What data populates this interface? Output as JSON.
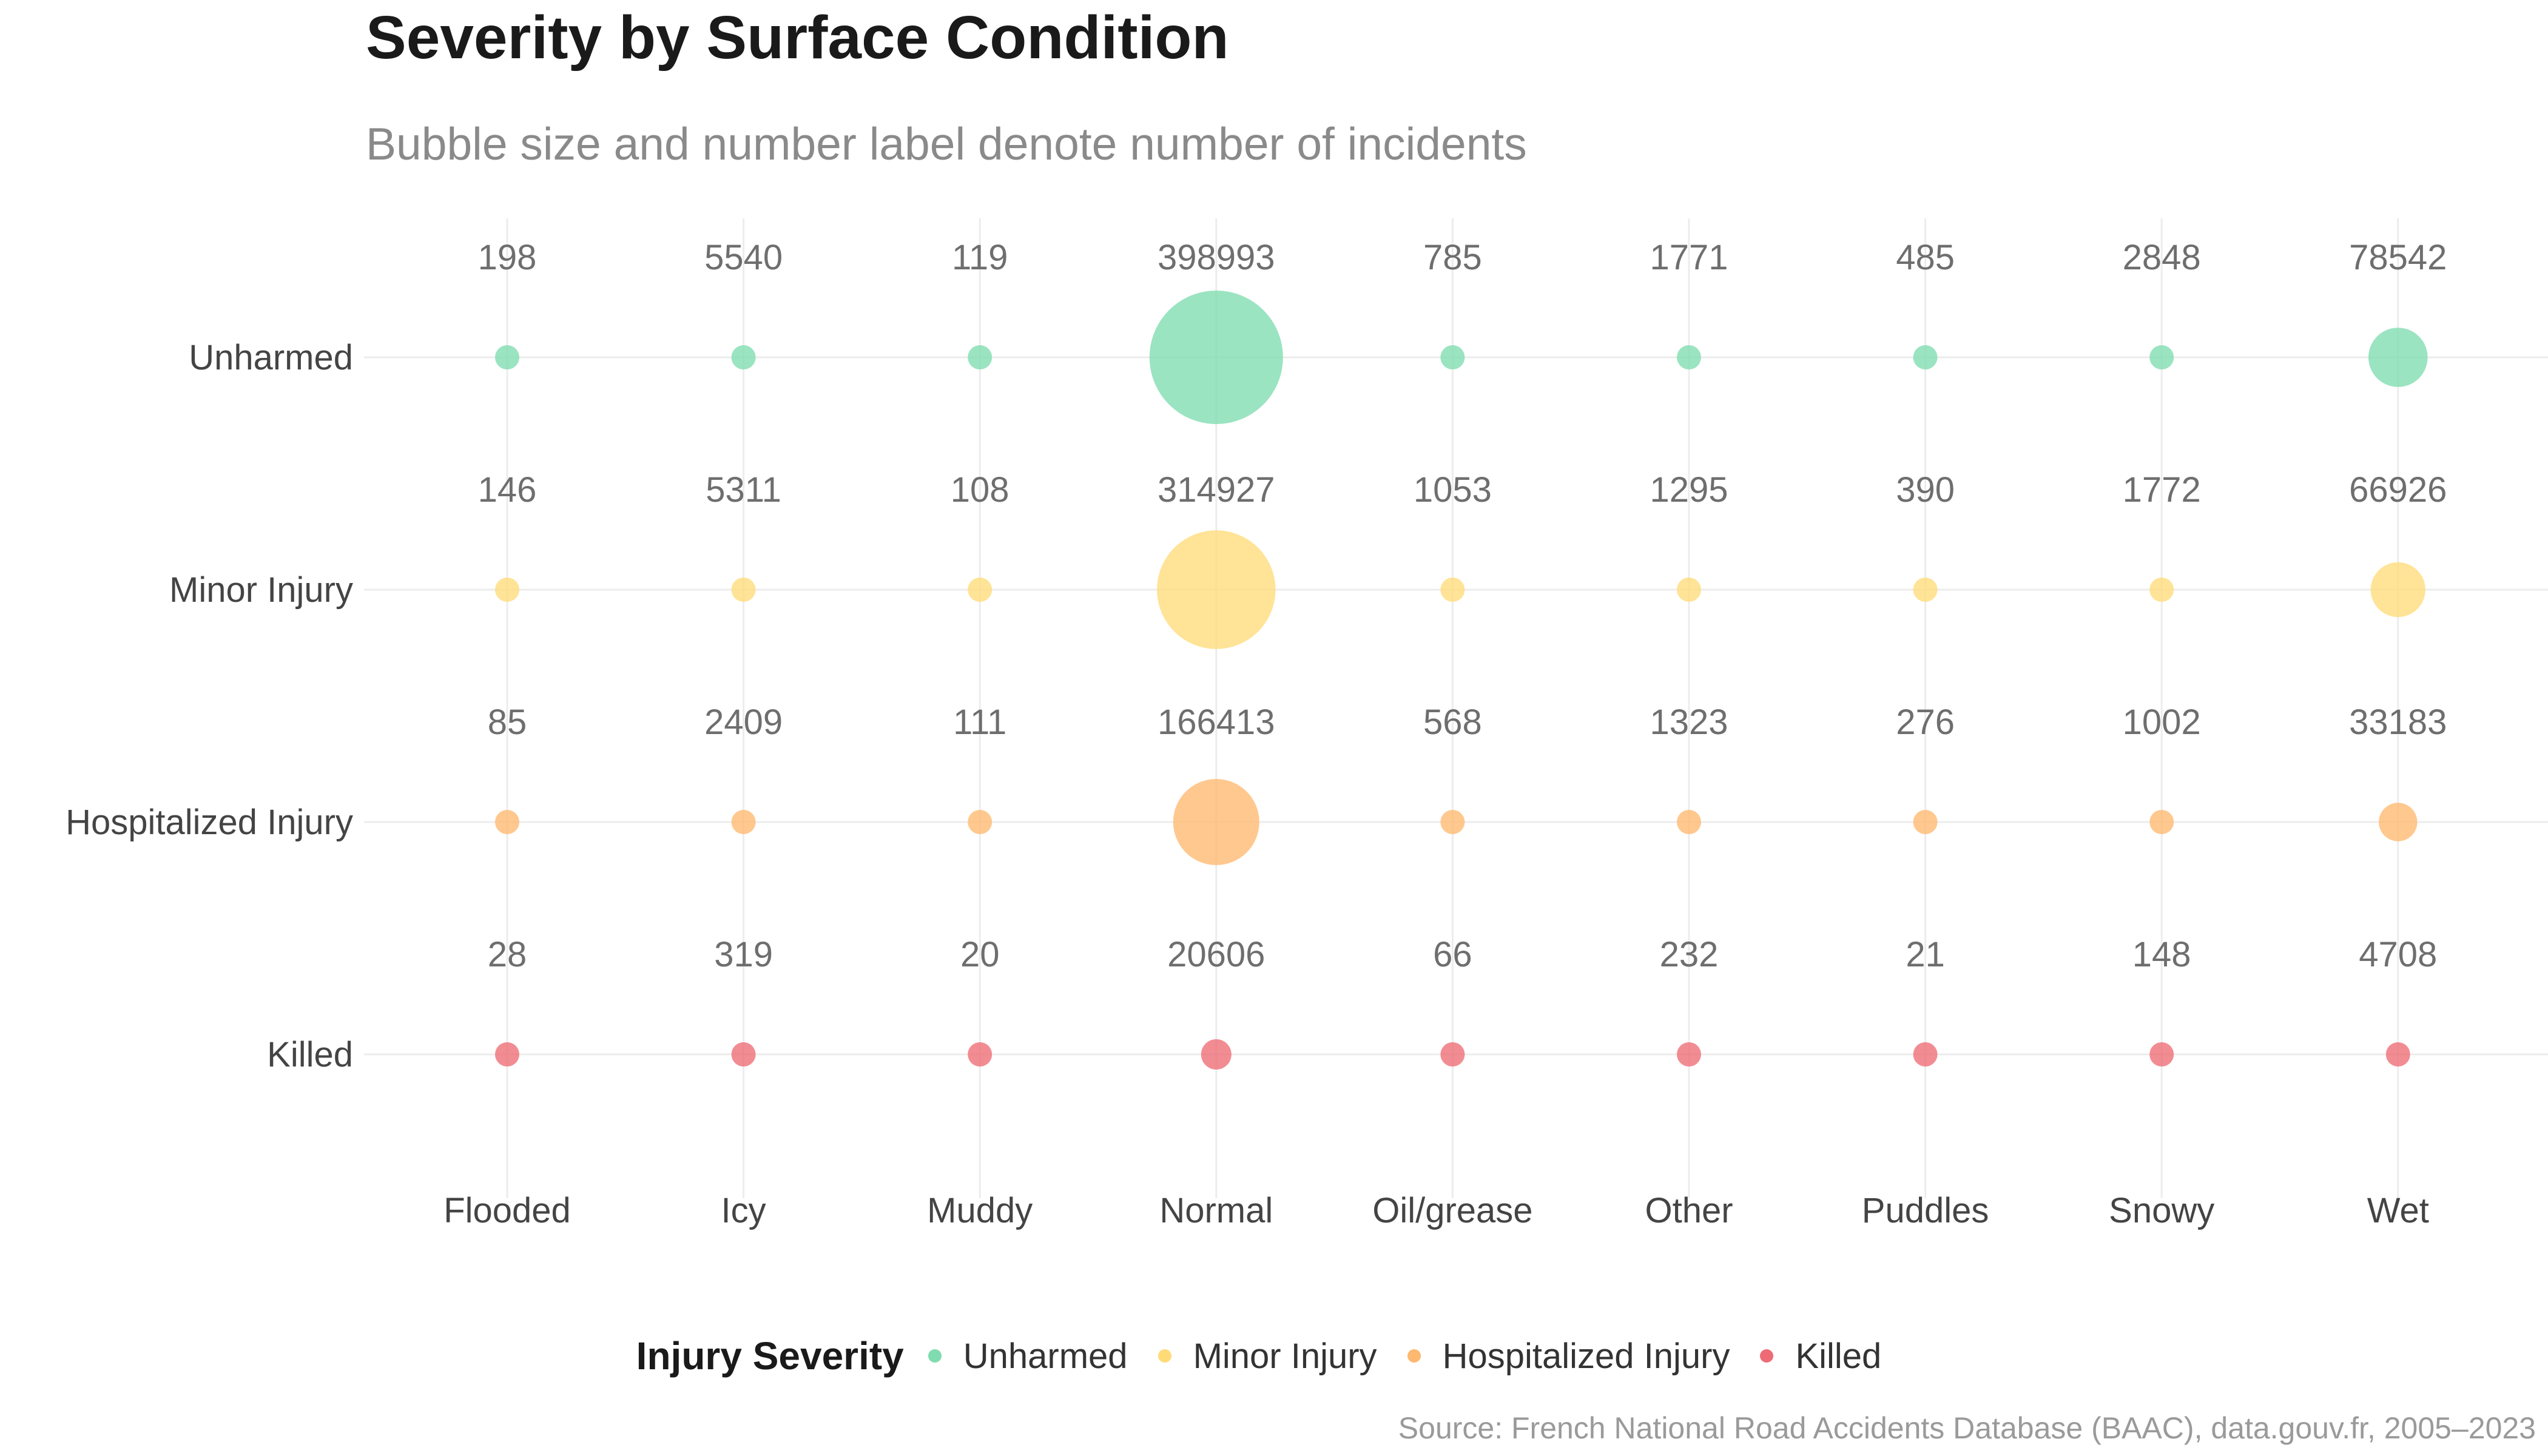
{
  "chart_data": {
    "type": "scatter",
    "title": "Severity by Surface Condition",
    "subtitle": "Bubble size and number label denote number of incidents",
    "caption": "Source: French National Road Accidents Database (BAAC), data.gouv.fr, 2005–2023",
    "x_categories": [
      "Flooded",
      "Icy",
      "Muddy",
      "Normal",
      "Oil/grease",
      "Other",
      "Puddles",
      "Snowy",
      "Wet"
    ],
    "y_categories": [
      "Unharmed",
      "Minor Injury",
      "Hospitalized Injury",
      "Killed"
    ],
    "legend": {
      "title": "Injury Severity",
      "position": "bottom",
      "items": [
        {
          "label": "Unharmed",
          "color": "#7fdcb0"
        },
        {
          "label": "Minor Injury",
          "color": "#ffdb78"
        },
        {
          "label": "Hospitalized Injury",
          "color": "#ffb870"
        },
        {
          "label": "Killed",
          "color": "#ee6b75"
        }
      ]
    },
    "series": [
      {
        "name": "Unharmed",
        "color": "#7fdcb0",
        "values": [
          198,
          5540,
          119,
          398993,
          785,
          1771,
          485,
          2848,
          78542
        ]
      },
      {
        "name": "Minor Injury",
        "color": "#ffdb78",
        "values": [
          146,
          5311,
          108,
          314927,
          1053,
          1295,
          390,
          1772,
          66926
        ]
      },
      {
        "name": "Hospitalized Injury",
        "color": "#ffb870",
        "values": [
          85,
          2409,
          111,
          166413,
          568,
          1323,
          276,
          1002,
          33183
        ]
      },
      {
        "name": "Killed",
        "color": "#ee6b75",
        "values": [
          28,
          319,
          20,
          20606,
          66,
          232,
          21,
          148,
          4708
        ]
      }
    ],
    "grid": true
  }
}
